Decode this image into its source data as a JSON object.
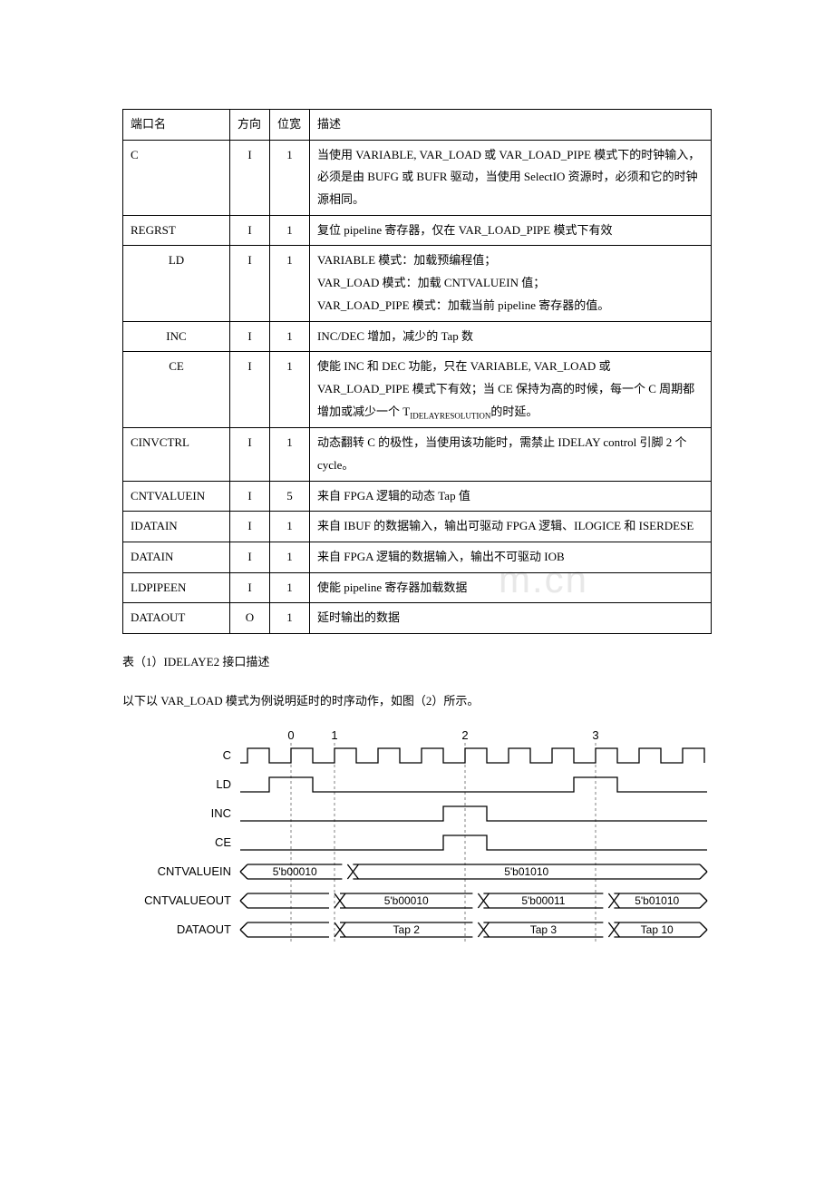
{
  "table": {
    "headers": {
      "name": "端口名",
      "dir": "方向",
      "width": "位宽",
      "desc": "描述"
    },
    "rows": [
      {
        "name": "C",
        "dir": "I",
        "width": "1",
        "desc": "当使用 VARIABLE, VAR_LOAD 或 VAR_LOAD_PIPE 模式下的时钟输入，必须是由 BUFG 或 BUFR 驱动，当使用 SelectIO 资源时，必须和它的时钟源相同。"
      },
      {
        "name": "REGRST",
        "dir": "I",
        "width": "1",
        "desc": "复位 pipeline 寄存器，仅在 VAR_LOAD_PIPE 模式下有效"
      },
      {
        "name": "LD",
        "dir": "I",
        "width": "1",
        "desc": "VARIABLE 模式：加载预编程值；\nVAR_LOAD 模式：加载 CNTVALUEIN 值；\nVAR_LOAD_PIPE 模式：加载当前 pipeline 寄存器的值。"
      },
      {
        "name": "INC",
        "dir": "I",
        "width": "1",
        "desc": "INC/DEC 增加，减少的 Tap 数"
      },
      {
        "name": "CE",
        "dir": "I",
        "width": "1",
        "desc_pre": "使能 INC 和 DEC 功能，只在 VARIABLE, VAR_LOAD 或 VAR_LOAD_PIPE 模式下有效；当 CE 保持为高的时候，每一个 C 周期都增加或减少一个 T",
        "desc_sub": "IDELAYRESOLUTION",
        "desc_post": "的时延。"
      },
      {
        "name": "CINVCTRL",
        "dir": "I",
        "width": "1",
        "desc": "动态翻转 C 的极性，当使用该功能时，需禁止 IDELAY control 引脚 2 个 cycle。"
      },
      {
        "name": "CNTVALUEIN",
        "dir": "I",
        "width": "5",
        "desc": "来自 FPGA 逻辑的动态 Tap 值"
      },
      {
        "name": "IDATAIN",
        "dir": "I",
        "width": "1",
        "desc": "来自 IBUF 的数据输入，输出可驱动 FPGA 逻辑、ILOGICE 和 ISERDESE"
      },
      {
        "name": "DATAIN",
        "dir": "I",
        "width": "1",
        "desc": "来自 FPGA 逻辑的数据输入，输出不可驱动 IOB"
      },
      {
        "name": "LDPIPEEN",
        "dir": "I",
        "width": "1",
        "desc": "使能 pipeline 寄存器加载数据"
      },
      {
        "name": "DATAOUT",
        "dir": "O",
        "width": "1",
        "desc": "延时输出的数据"
      }
    ]
  },
  "caption": "表（1）IDELAYE2 接口描述",
  "paragraph": "以下以 VAR_LOAD 模式为例说明延时的时序动作，如图（2）所示。",
  "timing": {
    "signals": [
      "C",
      "LD",
      "INC",
      "CE",
      "CNTVALUEIN",
      "CNTVALUEOUT",
      "DATAOUT"
    ],
    "top_labels": [
      "0",
      "1",
      "2",
      "3"
    ],
    "cntvaluein": [
      "5'b00010",
      "5'b01010"
    ],
    "cntvalueout": [
      "5'b00010",
      "5'b00011",
      "5'b01010"
    ],
    "dataout": [
      "Tap 2",
      "Tap 3",
      "Tap 10"
    ],
    "colors": {
      "line": "#000000",
      "dash": "#808080",
      "text": "#000000",
      "bg": "#ffffff"
    },
    "fontsize_label": 13,
    "fontsize_value": 12
  },
  "watermark": "m.cn"
}
